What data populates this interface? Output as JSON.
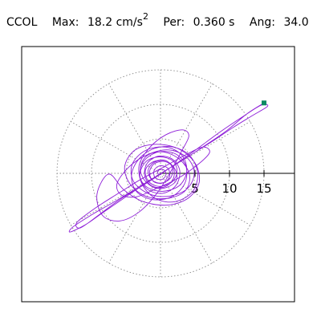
{
  "header": {
    "station": "CCOL",
    "max_label": "Max:",
    "max_value": "18.2",
    "max_unit_base": "cm/s",
    "max_unit_exp": "2",
    "per_label": "Per:",
    "per_value": "0.360 s",
    "ang_label": "Ang:",
    "ang_value": "34.0"
  },
  "chart_data": {
    "type": "scatter",
    "subtype": "polar-orbit",
    "title": "",
    "xlabel": "",
    "ylabel": "",
    "rlim": [
      0,
      15
    ],
    "radial_ticks": [
      5,
      10,
      15
    ],
    "tick_labels": [
      "5",
      "10",
      "15"
    ],
    "angular_spokes_deg": [
      0,
      30,
      60,
      90,
      120,
      150,
      180,
      210,
      240,
      270,
      300,
      330
    ],
    "grid": true,
    "orientation_deg": 34.0,
    "max_amplitude": 18.2,
    "series": [
      {
        "color": "#8e1ed8",
        "points": [
          [
            15.0,
            10.2
          ],
          [
            12.5,
            8.6
          ],
          [
            9.6,
            6.2
          ],
          [
            6.4,
            4.0
          ],
          [
            3.5,
            2.1
          ],
          [
            0.4,
            0.2
          ],
          [
            -2.8,
            -1.9
          ],
          [
            -5.6,
            -3.8
          ],
          [
            -8.5,
            -5.8
          ],
          [
            -10.8,
            -7.4
          ],
          [
            -13.1,
            -8.5
          ],
          [
            -12.6,
            -7.7
          ],
          [
            -9.8,
            -5.9
          ],
          [
            -6.3,
            -3.9
          ],
          [
            -2.7,
            -1.7
          ],
          [
            0.9,
            0.5
          ],
          [
            4.1,
            2.5
          ],
          [
            7.6,
            4.7
          ],
          [
            10.6,
            6.7
          ],
          [
            13.2,
            8.3
          ],
          [
            15.5,
            9.7
          ],
          [
            14.6,
            9.9
          ],
          [
            11.9,
            8.2
          ],
          [
            8.5,
            5.9
          ],
          [
            4.7,
            3.1
          ],
          [
            1.1,
            0.6
          ],
          [
            -2.3,
            -1.6
          ],
          [
            -5.9,
            -3.8
          ],
          [
            -8.9,
            -6.0
          ],
          [
            -11.6,
            -7.9
          ],
          [
            -12.1,
            -7.1
          ],
          [
            -9.4,
            -5.0
          ],
          [
            -6.1,
            -2.9
          ],
          [
            -2.9,
            -0.9
          ],
          [
            0.6,
            1.0
          ],
          [
            3.5,
            2.6
          ],
          [
            6.1,
            3.8
          ],
          [
            7.1,
            3.0
          ],
          [
            5.2,
            1.1
          ],
          [
            2.4,
            -0.8
          ],
          [
            -0.6,
            -2.2
          ],
          [
            -3.5,
            -3.4
          ],
          [
            -5.7,
            -3.1
          ],
          [
            -6.3,
            -1.5
          ],
          [
            -4.6,
            0.9
          ],
          [
            -1.9,
            2.7
          ],
          [
            1.2,
            3.4
          ],
          [
            3.8,
            2.3
          ],
          [
            4.9,
            0.1
          ],
          [
            3.9,
            -2.2
          ],
          [
            1.3,
            -3.3
          ],
          [
            -1.6,
            -3.0
          ],
          [
            -3.9,
            -1.2
          ],
          [
            -4.1,
            1.3
          ],
          [
            -2.2,
            3.3
          ],
          [
            0.8,
            3.8
          ],
          [
            3.1,
            2.6
          ],
          [
            3.8,
            0.3
          ],
          [
            2.7,
            -1.8
          ],
          [
            0.2,
            -2.6
          ],
          [
            -2.1,
            -1.9
          ],
          [
            -3.0,
            -0.2
          ],
          [
            -2.1,
            1.7
          ],
          [
            -0.2,
            2.4
          ],
          [
            1.8,
            1.8
          ],
          [
            2.4,
            0.2
          ],
          [
            1.6,
            -1.3
          ],
          [
            -0.2,
            -1.9
          ],
          [
            -1.7,
            -1.2
          ],
          [
            -2.2,
            0.4
          ],
          [
            -1.2,
            1.6
          ],
          [
            0.6,
            1.9
          ],
          [
            1.7,
            0.9
          ],
          [
            1.5,
            -0.6
          ],
          [
            0.2,
            -1.4
          ],
          [
            -1.2,
            -1.0
          ],
          [
            -1.8,
            0.4
          ],
          [
            -0.9,
            1.6
          ],
          [
            0.8,
            1.8
          ],
          [
            2.1,
            0.6
          ],
          [
            2.3,
            -1.0
          ],
          [
            1.0,
            -2.0
          ],
          [
            -0.8,
            -2.1
          ],
          [
            -2.4,
            -0.9
          ],
          [
            -2.9,
            0.9
          ],
          [
            -1.9,
            2.6
          ],
          [
            0.4,
            3.1
          ],
          [
            2.8,
            2.0
          ],
          [
            4.2,
            -0.2
          ],
          [
            3.6,
            -2.5
          ],
          [
            1.2,
            -3.6
          ],
          [
            -1.9,
            -3.4
          ],
          [
            -4.3,
            -1.7
          ],
          [
            -5.2,
            0.9
          ],
          [
            -3.8,
            3.3
          ],
          [
            -0.9,
            4.2
          ],
          [
            2.5,
            3.6
          ],
          [
            5.0,
            1.5
          ],
          [
            5.6,
            -1.3
          ],
          [
            4.0,
            -3.6
          ],
          [
            1.0,
            -4.6
          ],
          [
            -2.5,
            -4.1
          ],
          [
            -5.3,
            -2.4
          ],
          [
            -7.5,
            -0.1
          ],
          [
            -9.2,
            -3.0
          ],
          [
            -8.4,
            -6.1
          ],
          [
            -5.9,
            -6.9
          ],
          [
            -3.1,
            -5.6
          ],
          [
            -0.6,
            -3.0
          ],
          [
            1.4,
            0.1
          ],
          [
            3.0,
            3.1
          ],
          [
            4.1,
            5.4
          ],
          [
            3.2,
            6.3
          ],
          [
            0.8,
            5.6
          ],
          [
            -1.6,
            3.7
          ],
          [
            -3.1,
            1.1
          ],
          [
            -2.6,
            -1.7
          ],
          [
            -0.6,
            -3.7
          ],
          [
            2.1,
            -4.1
          ],
          [
            4.6,
            -2.7
          ],
          [
            5.4,
            -0.1
          ],
          [
            4.3,
            2.5
          ],
          [
            1.9,
            3.8
          ],
          [
            -0.9,
            3.6
          ],
          [
            -3.2,
            2.0
          ],
          [
            -4.2,
            -0.3
          ],
          [
            -3.5,
            -2.6
          ],
          [
            -1.2,
            -3.8
          ],
          [
            1.6,
            -3.4
          ],
          [
            3.5,
            -1.5
          ],
          [
            3.7,
            1.0
          ],
          [
            2.2,
            2.8
          ],
          [
            -0.3,
            3.1
          ],
          [
            -2.4,
            1.8
          ],
          [
            -3.0,
            -0.4
          ],
          [
            -1.9,
            -2.3
          ],
          [
            0.3,
            -2.9
          ],
          [
            2.2,
            -1.8
          ],
          [
            2.8,
            0.3
          ],
          [
            1.8,
            2.0
          ],
          [
            -0.2,
            2.5
          ],
          [
            -1.9,
            1.5
          ],
          [
            -2.3,
            -0.3
          ],
          [
            -1.3,
            -1.8
          ],
          [
            0.5,
            -2.0
          ],
          [
            1.8,
            -0.9
          ],
          [
            1.9,
            0.8
          ],
          [
            0.7,
            1.7
          ],
          [
            -0.9,
            1.4
          ],
          [
            -1.6,
            0.1
          ],
          [
            -1.0,
            -1.2
          ],
          [
            0.4,
            -1.4
          ],
          [
            1.3,
            -0.5
          ],
          [
            1.1,
            0.7
          ],
          [
            0.0,
            1.1
          ],
          [
            -0.9,
            0.5
          ],
          [
            -0.8,
            -0.6
          ],
          [
            0.2,
            -0.9
          ],
          [
            0.8,
            -0.2
          ],
          [
            0.5,
            0.5
          ],
          [
            -0.2,
            0.5
          ],
          [
            -0.4,
            0.0
          ],
          [
            0.0,
            -0.2
          ],
          [
            0.1,
            0.0
          ]
        ]
      }
    ],
    "marker": {
      "point": [
        15.0,
        10.2
      ],
      "color": "#0c8a63"
    }
  }
}
